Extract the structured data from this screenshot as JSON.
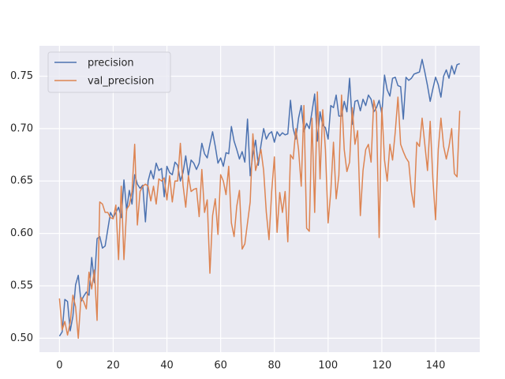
{
  "chart_data": {
    "type": "line",
    "x": [
      0,
      1,
      2,
      3,
      4,
      5,
      6,
      7,
      8,
      9,
      10,
      11,
      12,
      13,
      14,
      15,
      16,
      17,
      18,
      19,
      20,
      21,
      22,
      23,
      24,
      25,
      26,
      27,
      28,
      29,
      30,
      31,
      32,
      33,
      34,
      35,
      36,
      37,
      38,
      39,
      40,
      41,
      42,
      43,
      44,
      45,
      46,
      47,
      48,
      49,
      50,
      51,
      52,
      53,
      54,
      55,
      56,
      57,
      58,
      59,
      60,
      61,
      62,
      63,
      64,
      65,
      66,
      67,
      68,
      69,
      70,
      71,
      72,
      73,
      74,
      75,
      76,
      77,
      78,
      79,
      80,
      81,
      82,
      83,
      84,
      85,
      86,
      87,
      88,
      89,
      90,
      91,
      92,
      93,
      94,
      95,
      96,
      97,
      98,
      99,
      100,
      101,
      102,
      103,
      104,
      105,
      106,
      107,
      108,
      109,
      110,
      111,
      112,
      113,
      114,
      115,
      116,
      117,
      118,
      119,
      120,
      121,
      122,
      123,
      124,
      125,
      126,
      127,
      128,
      129,
      130,
      131,
      132,
      133,
      134,
      135,
      136,
      137,
      138,
      139,
      140,
      141,
      142,
      143,
      144,
      145,
      146,
      147,
      148,
      149
    ],
    "series": [
      {
        "name": "precision",
        "color": "#4c72b0",
        "values": [
          0.502,
          0.506,
          0.537,
          0.535,
          0.507,
          0.521,
          0.551,
          0.56,
          0.535,
          0.54,
          0.544,
          0.541,
          0.577,
          0.553,
          0.595,
          0.597,
          0.586,
          0.588,
          0.604,
          0.62,
          0.615,
          0.62,
          0.625,
          0.615,
          0.651,
          0.622,
          0.641,
          0.628,
          0.656,
          0.647,
          0.643,
          0.646,
          0.611,
          0.65,
          0.66,
          0.652,
          0.667,
          0.66,
          0.662,
          0.635,
          0.664,
          0.658,
          0.656,
          0.668,
          0.665,
          0.65,
          0.658,
          0.674,
          0.655,
          0.67,
          0.667,
          0.661,
          0.667,
          0.686,
          0.676,
          0.672,
          0.685,
          0.697,
          0.683,
          0.667,
          0.672,
          0.664,
          0.677,
          0.676,
          0.702,
          0.688,
          0.68,
          0.671,
          0.678,
          0.668,
          0.709,
          0.655,
          0.675,
          0.689,
          0.665,
          0.684,
          0.7,
          0.69,
          0.695,
          0.697,
          0.687,
          0.697,
          0.693,
          0.696,
          0.694,
          0.695,
          0.727,
          0.7,
          0.69,
          0.71,
          0.722,
          0.697,
          0.705,
          0.7,
          0.716,
          0.733,
          0.688,
          0.716,
          0.703,
          0.701,
          0.69,
          0.722,
          0.72,
          0.732,
          0.712,
          0.712,
          0.726,
          0.716,
          0.748,
          0.704,
          0.726,
          0.727,
          0.717,
          0.728,
          0.722,
          0.732,
          0.728,
          0.716,
          0.72,
          0.727,
          0.714,
          0.751,
          0.737,
          0.731,
          0.748,
          0.749,
          0.741,
          0.74,
          0.709,
          0.749,
          0.746,
          0.748,
          0.752,
          0.753,
          0.754,
          0.766,
          0.754,
          0.741,
          0.726,
          0.738,
          0.749,
          0.742,
          0.73,
          0.75,
          0.756,
          0.748,
          0.76,
          0.752,
          0.761,
          0.762
        ]
      },
      {
        "name": "val_precision",
        "color": "#dd8452",
        "values": [
          0.538,
          0.508,
          0.516,
          0.503,
          0.515,
          0.541,
          0.53,
          0.5,
          0.539,
          0.535,
          0.528,
          0.563,
          0.547,
          0.565,
          0.517,
          0.63,
          0.628,
          0.62,
          0.62,
          0.615,
          0.614,
          0.627,
          0.575,
          0.645,
          0.575,
          0.623,
          0.627,
          0.64,
          0.685,
          0.608,
          0.64,
          0.645,
          0.647,
          0.645,
          0.631,
          0.645,
          0.628,
          0.652,
          0.65,
          0.653,
          0.632,
          0.655,
          0.63,
          0.65,
          0.65,
          0.686,
          0.646,
          0.625,
          0.655,
          0.64,
          0.642,
          0.643,
          0.616,
          0.661,
          0.62,
          0.632,
          0.562,
          0.617,
          0.633,
          0.599,
          0.656,
          0.65,
          0.637,
          0.664,
          0.61,
          0.597,
          0.626,
          0.641,
          0.585,
          0.59,
          0.61,
          0.63,
          0.695,
          0.66,
          0.67,
          0.68,
          0.66,
          0.62,
          0.594,
          0.64,
          0.673,
          0.601,
          0.639,
          0.62,
          0.64,
          0.592,
          0.675,
          0.671,
          0.7,
          0.68,
          0.645,
          0.722,
          0.605,
          0.602,
          0.71,
          0.62,
          0.735,
          0.652,
          0.718,
          0.68,
          0.61,
          0.64,
          0.687,
          0.633,
          0.655,
          0.732,
          0.68,
          0.659,
          0.668,
          0.72,
          0.685,
          0.698,
          0.617,
          0.66,
          0.68,
          0.685,
          0.668,
          0.727,
          0.715,
          0.596,
          0.72,
          0.67,
          0.65,
          0.685,
          0.67,
          0.697,
          0.73,
          0.685,
          0.678,
          0.672,
          0.668,
          0.64,
          0.625,
          0.687,
          0.683,
          0.71,
          0.685,
          0.66,
          0.707,
          0.652,
          0.613,
          0.68,
          0.71,
          0.683,
          0.671,
          0.683,
          0.7,
          0.657,
          0.654,
          0.717
        ]
      }
    ],
    "xlim": [
      -7.45,
      156.45
    ],
    "xticks": [
      0,
      20,
      40,
      60,
      80,
      100,
      120,
      140
    ],
    "ylim": [
      0.4867,
      0.779
    ],
    "yticks": [
      {
        "value": 0.5,
        "label": "0.50"
      },
      0.55,
      {
        "value": 0.6,
        "label": "0.60"
      },
      0.65,
      {
        "value": 0.7,
        "label": "0.70"
      },
      0.75
    ],
    "grid": true,
    "legend": "upper left"
  }
}
